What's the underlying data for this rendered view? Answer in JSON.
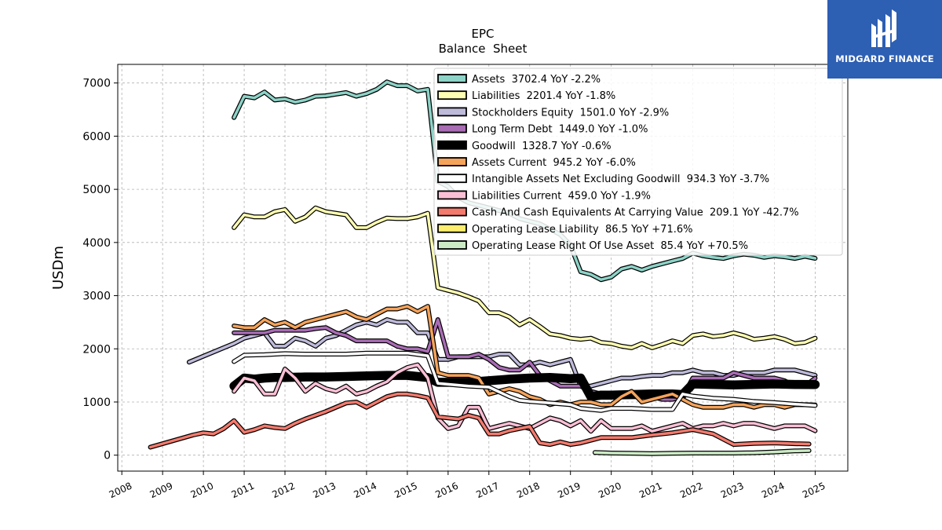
{
  "brand": {
    "name": "MIDGARD FINANCE",
    "color": "#2d5fb3"
  },
  "chart_data": {
    "type": "line",
    "title": "EPC",
    "subtitle": "Balance  Sheet",
    "ylabel": "USDm",
    "xlabel": "",
    "xlim": [
      2007.9,
      2025.8
    ],
    "ylim": [
      -300,
      7350
    ],
    "yticks": [
      0,
      1000,
      2000,
      3000,
      4000,
      5000,
      6000,
      7000
    ],
    "xticks": [
      "2008",
      "2009",
      "2010",
      "2011",
      "2012",
      "2013",
      "2014",
      "2015",
      "2016",
      "2017",
      "2018",
      "2019",
      "2020",
      "2021",
      "2022",
      "2023",
      "2024",
      "2025"
    ],
    "grid": true,
    "legend_position": "upper-right",
    "series": [
      {
        "name": "Assets",
        "legend": "Assets  3702.4 YoY -2.2%",
        "color": "#8dd3c7",
        "width": 3.5,
        "x": [
          2010.75,
          2011.0,
          2011.25,
          2011.5,
          2011.75,
          2012.0,
          2012.25,
          2012.5,
          2012.75,
          2013.0,
          2013.25,
          2013.5,
          2013.75,
          2014.0,
          2014.25,
          2014.5,
          2014.75,
          2015.0,
          2015.25,
          2015.5,
          2015.75,
          2016.0,
          2016.25,
          2016.5,
          2016.75,
          2017.0,
          2017.25,
          2017.5,
          2017.75,
          2018.0,
          2018.25,
          2018.5,
          2018.75,
          2019.0,
          2019.25,
          2019.5,
          2019.75,
          2020.0,
          2020.25,
          2020.5,
          2020.75,
          2021.0,
          2021.25,
          2021.5,
          2021.75,
          2022.0,
          2022.25,
          2022.5,
          2022.75,
          2023.0,
          2023.25,
          2023.5,
          2023.75,
          2024.0,
          2024.25,
          2024.5,
          2024.75,
          2025.0
        ],
        "y": [
          6350,
          6750,
          6720,
          6830,
          6680,
          6700,
          6640,
          6680,
          6750,
          6760,
          6790,
          6820,
          6750,
          6800,
          6880,
          7020,
          6950,
          6950,
          6850,
          6880,
          5150,
          5050,
          4850,
          4750,
          4700,
          4650,
          4600,
          4550,
          4450,
          4400,
          4350,
          4250,
          4150,
          3950,
          3450,
          3400,
          3300,
          3350,
          3500,
          3550,
          3480,
          3550,
          3600,
          3650,
          3700,
          3800,
          3750,
          3720,
          3700,
          3750,
          3780,
          3760,
          3720,
          3750,
          3730,
          3700,
          3740,
          3702
        ]
      },
      {
        "name": "Liabilities",
        "legend": "Liabilities  2201.4 YoY -1.8%",
        "color": "#ffffb3",
        "width": 3.5,
        "x": [
          2010.75,
          2011.0,
          2011.25,
          2011.5,
          2011.75,
          2012.0,
          2012.25,
          2012.5,
          2012.75,
          2013.0,
          2013.25,
          2013.5,
          2013.75,
          2014.0,
          2014.25,
          2014.5,
          2014.75,
          2015.0,
          2015.25,
          2015.5,
          2015.75,
          2016.0,
          2016.25,
          2016.5,
          2016.75,
          2017.0,
          2017.25,
          2017.5,
          2017.75,
          2018.0,
          2018.25,
          2018.5,
          2018.75,
          2019.0,
          2019.25,
          2019.5,
          2019.75,
          2020.0,
          2020.25,
          2020.5,
          2020.75,
          2021.0,
          2021.25,
          2021.5,
          2021.75,
          2022.0,
          2022.25,
          2022.5,
          2022.75,
          2023.0,
          2023.25,
          2023.5,
          2023.75,
          2024.0,
          2024.25,
          2024.5,
          2024.75,
          2025.0
        ],
        "y": [
          4280,
          4520,
          4480,
          4480,
          4580,
          4620,
          4400,
          4480,
          4650,
          4580,
          4550,
          4520,
          4280,
          4280,
          4380,
          4460,
          4450,
          4450,
          4480,
          4550,
          3150,
          3100,
          3050,
          2980,
          2900,
          2680,
          2680,
          2600,
          2450,
          2550,
          2420,
          2280,
          2250,
          2200,
          2180,
          2200,
          2120,
          2100,
          2050,
          2020,
          2100,
          2020,
          2080,
          2150,
          2100,
          2250,
          2280,
          2230,
          2250,
          2300,
          2250,
          2180,
          2200,
          2230,
          2180,
          2100,
          2120,
          2201
        ]
      },
      {
        "name": "Stockholders Equity",
        "legend": "Stockholders Equity  1501.0 YoY -2.9%",
        "color": "#bebada",
        "width": 3.5,
        "x": [
          2009.65,
          2010.75,
          2011.0,
          2011.25,
          2011.5,
          2011.75,
          2012.0,
          2012.25,
          2012.5,
          2012.75,
          2013.0,
          2013.25,
          2013.5,
          2013.75,
          2014.0,
          2014.25,
          2014.5,
          2014.75,
          2015.0,
          2015.25,
          2015.5,
          2015.75,
          2016.0,
          2016.25,
          2016.5,
          2016.75,
          2017.0,
          2017.25,
          2017.5,
          2017.75,
          2018.0,
          2018.25,
          2018.5,
          2018.75,
          2019.0,
          2019.25,
          2019.5,
          2019.75,
          2020.0,
          2020.25,
          2020.5,
          2020.75,
          2021.0,
          2021.25,
          2021.5,
          2021.75,
          2022.0,
          2022.25,
          2022.5,
          2022.75,
          2023.0,
          2023.25,
          2023.5,
          2023.75,
          2024.0,
          2024.25,
          2024.5,
          2024.75,
          2025.0
        ],
        "y": [
          1750,
          2100,
          2200,
          2250,
          2300,
          2050,
          2050,
          2200,
          2150,
          2050,
          2200,
          2250,
          2350,
          2450,
          2500,
          2450,
          2550,
          2500,
          2500,
          2300,
          2300,
          1800,
          1800,
          1850,
          1850,
          1850,
          1850,
          1900,
          1900,
          1700,
          1700,
          1750,
          1700,
          1750,
          1800,
          1300,
          1300,
          1350,
          1400,
          1450,
          1450,
          1480,
          1500,
          1500,
          1550,
          1550,
          1600,
          1550,
          1550,
          1500,
          1500,
          1550,
          1550,
          1550,
          1600,
          1600,
          1600,
          1550,
          1501
        ]
      },
      {
        "name": "Long Term Debt",
        "legend": "Long Term Debt  1449.0 YoY -1.0%",
        "color": "#a86cb4",
        "width": 3.5,
        "x": [
          2010.75,
          2011.0,
          2011.25,
          2011.5,
          2011.75,
          2012.0,
          2012.25,
          2012.5,
          2012.75,
          2013.0,
          2013.25,
          2013.5,
          2013.75,
          2014.0,
          2014.25,
          2014.5,
          2014.75,
          2015.0,
          2015.25,
          2015.5,
          2015.75,
          2016.0,
          2016.25,
          2016.5,
          2016.75,
          2017.0,
          2017.25,
          2017.5,
          2017.75,
          2018.0,
          2018.25,
          2018.5,
          2018.75,
          2019.0,
          2019.25,
          2019.5,
          2019.75,
          2020.0,
          2020.25,
          2020.5,
          2020.75,
          2021.0,
          2021.25,
          2021.5,
          2021.75,
          2022.0,
          2022.25,
          2022.5,
          2022.75,
          2023.0,
          2023.25,
          2023.5,
          2023.75,
          2024.0,
          2024.25,
          2024.5,
          2024.75,
          2025.0
        ],
        "y": [
          2300,
          2300,
          2300,
          2300,
          2350,
          2350,
          2350,
          2350,
          2380,
          2400,
          2300,
          2250,
          2150,
          2150,
          2150,
          2150,
          2050,
          2000,
          2000,
          1950,
          2550,
          1850,
          1850,
          1850,
          1900,
          1800,
          1650,
          1600,
          1600,
          1750,
          1500,
          1400,
          1300,
          1300,
          1300,
          1200,
          1150,
          1150,
          1100,
          1100,
          1100,
          1100,
          1050,
          1050,
          1100,
          1450,
          1450,
          1450,
          1450,
          1550,
          1500,
          1450,
          1450,
          1450,
          1400,
          1300,
          1300,
          1449
        ]
      },
      {
        "name": "Goodwill",
        "legend": "Goodwill  1328.7 YoY -0.6%",
        "color": "#000000",
        "width": 9,
        "x": [
          2010.75,
          2011.0,
          2011.25,
          2011.5,
          2011.75,
          2012.0,
          2012.5,
          2013.0,
          2013.5,
          2014.0,
          2014.5,
          2015.0,
          2015.5,
          2015.75,
          2016.5,
          2017.0,
          2017.5,
          2018.0,
          2018.5,
          2019.0,
          2019.25,
          2019.5,
          2019.75,
          2020.0,
          2020.5,
          2021.0,
          2021.5,
          2021.75,
          2022.0,
          2022.5,
          2023.0,
          2023.5,
          2024.0,
          2024.5,
          2025.0
        ],
        "y": [
          1300,
          1450,
          1430,
          1450,
          1460,
          1460,
          1470,
          1470,
          1480,
          1490,
          1500,
          1500,
          1460,
          1370,
          1370,
          1400,
          1430,
          1450,
          1460,
          1440,
          1450,
          1100,
          1130,
          1130,
          1140,
          1150,
          1150,
          1140,
          1340,
          1330,
          1320,
          1330,
          1340,
          1330,
          1329
        ]
      },
      {
        "name": "Assets Current",
        "legend": "Assets Current  945.2 YoY -6.0%",
        "color": "#f6a35a",
        "width": 3.5,
        "x": [
          2010.75,
          2011.0,
          2011.25,
          2011.5,
          2011.75,
          2012.0,
          2012.25,
          2012.5,
          2012.75,
          2013.0,
          2013.25,
          2013.5,
          2013.75,
          2014.0,
          2014.25,
          2014.5,
          2014.75,
          2015.0,
          2015.25,
          2015.5,
          2015.75,
          2016.0,
          2016.25,
          2016.5,
          2016.75,
          2017.0,
          2017.25,
          2017.5,
          2017.75,
          2018.0,
          2018.25,
          2018.5,
          2018.75,
          2019.0,
          2019.25,
          2019.5,
          2019.75,
          2020.0,
          2020.25,
          2020.5,
          2020.75,
          2021.0,
          2021.25,
          2021.5,
          2021.75,
          2022.0,
          2022.25,
          2022.5,
          2022.75,
          2023.0,
          2023.25,
          2023.5,
          2023.75,
          2024.0,
          2024.25,
          2024.5,
          2024.75,
          2025.0
        ],
        "y": [
          2430,
          2400,
          2400,
          2550,
          2450,
          2500,
          2400,
          2500,
          2550,
          2600,
          2650,
          2700,
          2600,
          2550,
          2650,
          2750,
          2750,
          2800,
          2700,
          2800,
          1550,
          1500,
          1500,
          1500,
          1450,
          1150,
          1200,
          1250,
          1200,
          1100,
          1050,
          950,
          1000,
          950,
          1000,
          1000,
          950,
          950,
          1100,
          1200,
          1000,
          1050,
          1100,
          1150,
          1050,
          950,
          900,
          900,
          900,
          950,
          950,
          900,
          950,
          950,
          900,
          950,
          950,
          945
        ]
      },
      {
        "name": "Intangible Assets Net Excluding Goodwill",
        "legend": "Intangible Assets Net Excluding Goodwill  934.3 YoY -3.7%",
        "color": "#ffffff",
        "width": 3.5,
        "x": [
          2010.75,
          2011.0,
          2011.5,
          2012.0,
          2012.5,
          2013.0,
          2013.5,
          2014.0,
          2014.5,
          2015.0,
          2015.5,
          2015.75,
          2016.5,
          2017.0,
          2017.5,
          2017.75,
          2018.0,
          2018.5,
          2019.0,
          2019.25,
          2019.5,
          2019.75,
          2020.0,
          2020.5,
          2021.0,
          2021.5,
          2021.75,
          2022.0,
          2022.5,
          2023.0,
          2023.5,
          2024.0,
          2024.5,
          2025.0
        ],
        "y": [
          1760,
          1880,
          1890,
          1910,
          1900,
          1900,
          1900,
          1920,
          1920,
          1920,
          1870,
          1350,
          1300,
          1280,
          1100,
          1030,
          1010,
          980,
          950,
          880,
          860,
          840,
          880,
          880,
          860,
          860,
          1150,
          1110,
          1070,
          1050,
          1010,
          990,
          960,
          934
        ]
      },
      {
        "name": "Liabilities Current",
        "legend": "Liabilities Current  459.0 YoY -1.9%",
        "color": "#fbbfd5",
        "width": 3.5,
        "x": [
          2010.75,
          2011.0,
          2011.25,
          2011.5,
          2011.75,
          2012.0,
          2012.25,
          2012.5,
          2012.75,
          2013.0,
          2013.25,
          2013.5,
          2013.75,
          2014.0,
          2014.25,
          2014.5,
          2014.75,
          2015.0,
          2015.25,
          2015.5,
          2015.75,
          2016.0,
          2016.25,
          2016.5,
          2016.75,
          2017.0,
          2017.25,
          2017.5,
          2017.75,
          2018.0,
          2018.25,
          2018.5,
          2018.75,
          2019.0,
          2019.25,
          2019.5,
          2019.75,
          2020.0,
          2020.25,
          2020.5,
          2020.75,
          2021.0,
          2021.25,
          2021.5,
          2021.75,
          2022.0,
          2022.25,
          2022.5,
          2022.75,
          2023.0,
          2023.25,
          2023.5,
          2023.75,
          2024.0,
          2024.25,
          2024.5,
          2024.75,
          2025.0
        ],
        "y": [
          1200,
          1450,
          1400,
          1150,
          1150,
          1620,
          1450,
          1200,
          1350,
          1250,
          1200,
          1300,
          1150,
          1200,
          1300,
          1380,
          1550,
          1650,
          1700,
          1450,
          700,
          500,
          550,
          900,
          900,
          500,
          550,
          600,
          550,
          500,
          600,
          700,
          650,
          550,
          650,
          450,
          650,
          500,
          500,
          500,
          550,
          450,
          500,
          550,
          600,
          500,
          550,
          550,
          600,
          550,
          600,
          600,
          550,
          500,
          550,
          550,
          550,
          459
        ]
      },
      {
        "name": "Cash And Cash Equivalents At Carrying Value",
        "legend": "Cash And Cash Equivalents At Carrying Value  209.1 YoY -42.7%",
        "color": "#f47a6d",
        "width": 3.5,
        "x": [
          2008.7,
          2009.75,
          2010.0,
          2010.25,
          2010.5,
          2010.75,
          2011.0,
          2011.25,
          2011.5,
          2011.75,
          2012.0,
          2012.25,
          2012.5,
          2012.75,
          2013.0,
          2013.25,
          2013.5,
          2013.75,
          2014.0,
          2014.25,
          2014.5,
          2014.75,
          2015.0,
          2015.25,
          2015.5,
          2015.75,
          2016.0,
          2016.25,
          2016.5,
          2016.75,
          2017.0,
          2017.25,
          2017.5,
          2017.75,
          2018.0,
          2018.25,
          2018.5,
          2018.75,
          2019.0,
          2019.25,
          2019.5,
          2019.75,
          2020.0,
          2020.5,
          2021.0,
          2021.5,
          2021.75,
          2022.0,
          2022.5,
          2022.75,
          2023.0,
          2023.5,
          2024.0,
          2024.5,
          2024.85
        ],
        "y": [
          150,
          380,
          420,
          400,
          500,
          650,
          430,
          480,
          550,
          520,
          500,
          600,
          680,
          750,
          820,
          900,
          980,
          1000,
          900,
          1000,
          1100,
          1150,
          1150,
          1120,
          1080,
          720,
          700,
          680,
          750,
          700,
          400,
          400,
          460,
          500,
          540,
          230,
          200,
          250,
          200,
          230,
          280,
          330,
          330,
          330,
          380,
          420,
          450,
          480,
          400,
          300,
          200,
          220,
          230,
          215,
          209
        ]
      },
      {
        "name": "Operating Lease Liability",
        "legend": "Operating Lease Liability  86.5 YoY +71.6%",
        "color": "#ffed6f",
        "width": 3.5,
        "x": [],
        "y": []
      },
      {
        "name": "Operating Lease Right Of Use Asset",
        "legend": "Operating Lease Right Of Use Asset  85.4 YoY +70.5%",
        "color": "#ccebc5",
        "width": 3.5,
        "x": [
          2019.6,
          2020.0,
          2020.5,
          2021.0,
          2021.5,
          2022.0,
          2022.5,
          2023.0,
          2023.5,
          2024.0,
          2024.5,
          2024.85
        ],
        "y": [
          50,
          40,
          35,
          30,
          35,
          40,
          40,
          40,
          45,
          60,
          80,
          85
        ]
      }
    ]
  }
}
